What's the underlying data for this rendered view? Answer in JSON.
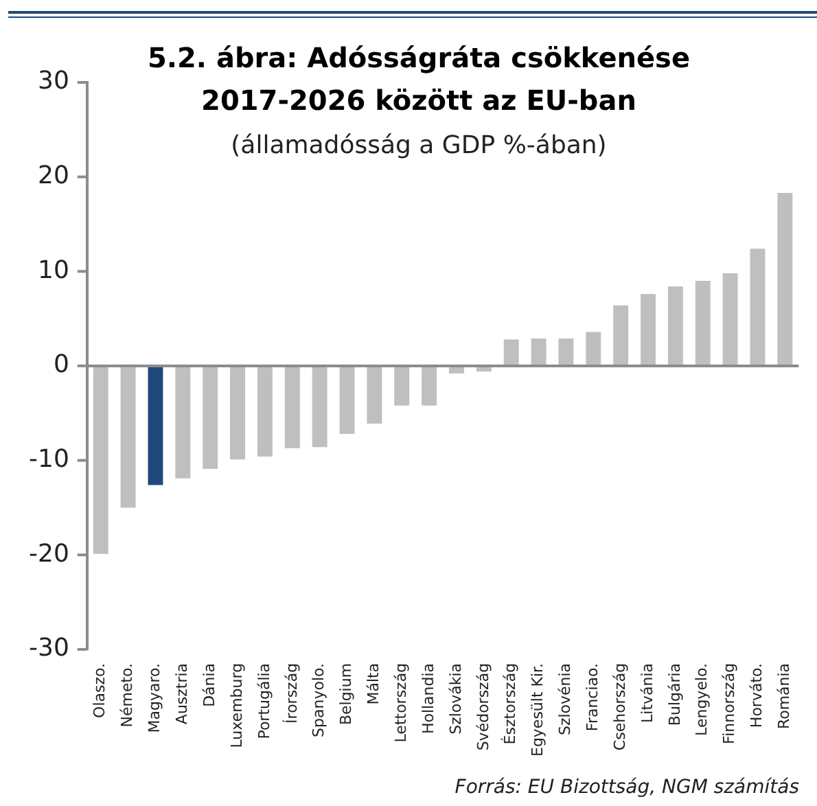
{
  "chart_data": {
    "type": "bar",
    "title": "5.2. ábra: Adósságráta csökkenése\n2017-2026 között az EU-ban",
    "subtitle": "(államadósság a GDP %-ában)",
    "categories": [
      "Olaszo.",
      "Németo.",
      "Magyaro.",
      "Ausztria",
      "Dánia",
      "Luxemburg",
      "Portugália",
      "Írország",
      "Spanyolo.",
      "Belgium",
      "Málta",
      "Lettország",
      "Hollandia",
      "Szlovákia",
      "Svédország",
      "Észtország",
      "Egyesült Kir.",
      "Szlovénia",
      "Franciao.",
      "Csehország",
      "Litvánia",
      "Bulgária",
      "Lengyelo.",
      "Finnország",
      "Horváto.",
      "Románia"
    ],
    "values": [
      -19.9,
      -15.0,
      -12.6,
      -11.9,
      -10.9,
      -9.9,
      -9.6,
      -8.7,
      -8.6,
      -7.2,
      -6.1,
      -4.2,
      -4.2,
      -0.8,
      -0.6,
      2.8,
      2.9,
      2.9,
      3.6,
      6.4,
      7.6,
      8.4,
      9.0,
      9.8,
      12.4,
      18.3
    ],
    "colors": [
      "#bfbfbf",
      "#bfbfbf",
      "#1f497d",
      "#bfbfbf",
      "#bfbfbf",
      "#bfbfbf",
      "#bfbfbf",
      "#bfbfbf",
      "#bfbfbf",
      "#bfbfbf",
      "#bfbfbf",
      "#bfbfbf",
      "#bfbfbf",
      "#bfbfbf",
      "#bfbfbf",
      "#bfbfbf",
      "#bfbfbf",
      "#bfbfbf",
      "#bfbfbf",
      "#bfbfbf",
      "#bfbfbf",
      "#bfbfbf",
      "#bfbfbf",
      "#bfbfbf",
      "#bfbfbf",
      "#bfbfbf"
    ],
    "ylim": [
      -30,
      30
    ],
    "yticks": [
      -30,
      -20,
      -10,
      0,
      10,
      20,
      30
    ],
    "grid": false,
    "legend": false,
    "ref_lines": [
      {
        "axis": "y",
        "value": 0,
        "color": "#8c8c8c"
      }
    ],
    "annotations": [
      "Forrás: EU Bizottság, NGM számítás"
    ]
  }
}
